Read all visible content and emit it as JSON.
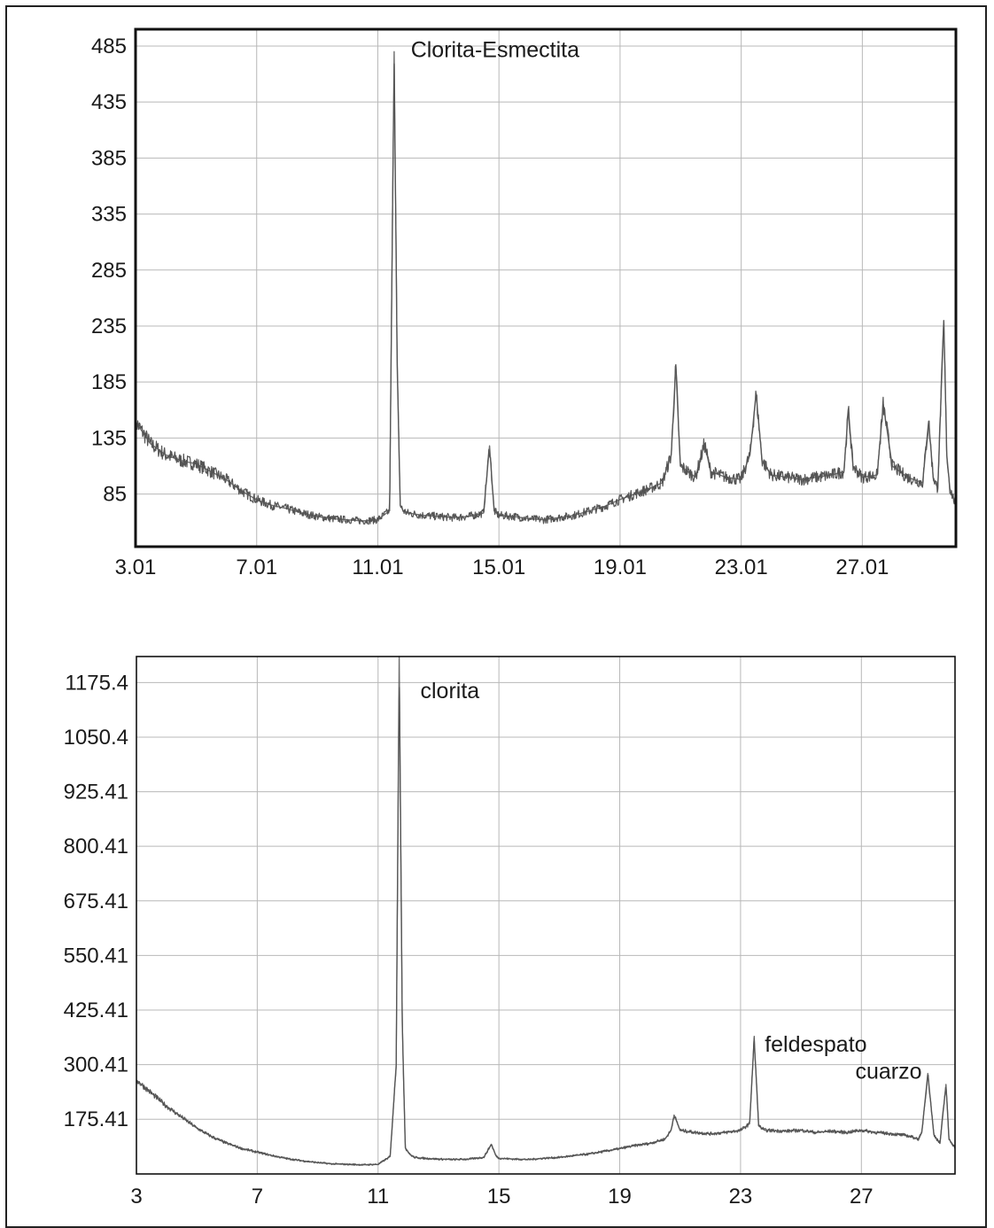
{
  "chart_data": [
    {
      "type": "line",
      "title": "",
      "xlabel": "",
      "ylabel": "",
      "x_ticks": [
        3.01,
        7.01,
        11.01,
        15.01,
        19.01,
        23.01,
        27.01
      ],
      "x_tick_labels": [
        "3.01",
        "7.01",
        "11.01",
        "15.01",
        "19.01",
        "23.01",
        "27.01"
      ],
      "y_ticks": [
        85,
        135,
        185,
        235,
        285,
        335,
        385,
        435,
        485
      ],
      "y_tick_labels": [
        "85",
        "135",
        "185",
        "235",
        "285",
        "335",
        "385",
        "435",
        "485"
      ],
      "xlim": [
        3.01,
        30.1
      ],
      "ylim": [
        38,
        500
      ],
      "grid": true,
      "annotations": [
        {
          "text": "Clorita-Esmectita",
          "x": 12.1,
          "y": 475
        }
      ],
      "series": [
        {
          "x": [
            3.0,
            3.5,
            4.0,
            4.5,
            5.0,
            5.5,
            6.0,
            6.5,
            7.0,
            7.5,
            8.0,
            8.5,
            9.0,
            9.5,
            10.0,
            10.5,
            11.0,
            11.4,
            11.55,
            11.65,
            11.75,
            11.85,
            12.0,
            12.5,
            13.0,
            13.5,
            14.0,
            14.5,
            14.7,
            14.85,
            15.0,
            15.5,
            16.0,
            16.5,
            17.0,
            17.5,
            18.0,
            18.5,
            19.0,
            19.5,
            20.0,
            20.4,
            20.7,
            20.85,
            21.0,
            21.5,
            21.8,
            22.0,
            22.5,
            23.0,
            23.3,
            23.5,
            23.7,
            24.0,
            24.5,
            25.0,
            25.5,
            26.0,
            26.4,
            26.55,
            26.7,
            27.0,
            27.5,
            27.7,
            28.0,
            28.5,
            29.0,
            29.2,
            29.35,
            29.5,
            29.7,
            29.8,
            29.9,
            30.1
          ],
          "y": [
            150,
            130,
            120,
            115,
            112,
            105,
            98,
            88,
            80,
            75,
            72,
            68,
            65,
            63,
            62,
            61,
            62,
            70,
            480,
            200,
            75,
            70,
            68,
            66,
            65,
            64,
            65,
            68,
            128,
            70,
            66,
            65,
            63,
            62,
            64,
            66,
            70,
            74,
            80,
            85,
            90,
            95,
            120,
            200,
            110,
            100,
            130,
            105,
            100,
            98,
            120,
            175,
            115,
            102,
            100,
            98,
            100,
            102,
            105,
            160,
            110,
            100,
            102,
            165,
            110,
            100,
            95,
            150,
            100,
            90,
            240,
            120,
            90,
            75
          ]
        }
      ]
    },
    {
      "type": "line",
      "title": "",
      "xlabel": "",
      "ylabel": "",
      "x_ticks": [
        3,
        7,
        11,
        15,
        19,
        23,
        27
      ],
      "x_tick_labels": [
        "3",
        "7",
        "11",
        "15",
        "19",
        "23",
        "27"
      ],
      "y_ticks": [
        175.41,
        300.41,
        425.41,
        550.41,
        675.41,
        800.41,
        925.41,
        1050.4,
        1175.4
      ],
      "y_tick_labels": [
        "175.41",
        "300.41",
        "425.41",
        "550.41",
        "675.41",
        "800.41",
        "925.41",
        "1050.4",
        "1175.4"
      ],
      "xlim": [
        3,
        30.1
      ],
      "ylim": [
        50,
        1235
      ],
      "grid": true,
      "annotations": [
        {
          "text": "clorita",
          "x": 12.4,
          "y": 1140
        },
        {
          "text": "feldespato",
          "x": 23.8,
          "y": 330
        },
        {
          "text": "cuarzo",
          "x": 26.8,
          "y": 268
        }
      ],
      "series": [
        {
          "x": [
            3.0,
            3.5,
            4.0,
            4.5,
            5.0,
            5.5,
            6.0,
            6.5,
            7.0,
            7.5,
            8.0,
            8.5,
            9.0,
            9.5,
            10.0,
            10.5,
            11.0,
            11.4,
            11.6,
            11.7,
            11.8,
            11.9,
            12.05,
            12.2,
            12.5,
            13.0,
            13.5,
            14.0,
            14.5,
            14.75,
            14.9,
            15.0,
            15.5,
            16.0,
            16.5,
            17.0,
            17.5,
            18.0,
            18.5,
            19.0,
            19.5,
            20.0,
            20.5,
            20.7,
            20.8,
            21.0,
            21.5,
            22.0,
            22.5,
            23.0,
            23.3,
            23.45,
            23.6,
            23.8,
            24.5,
            25.0,
            25.5,
            26.0,
            26.5,
            27.0,
            27.5,
            28.0,
            28.5,
            28.9,
            29.0,
            29.2,
            29.4,
            29.6,
            29.8,
            29.9,
            30.1
          ],
          "y": [
            265,
            235,
            205,
            180,
            155,
            135,
            120,
            108,
            100,
            92,
            85,
            80,
            76,
            73,
            72,
            71,
            72,
            90,
            300,
            1235,
            400,
            110,
            95,
            88,
            86,
            84,
            83,
            84,
            88,
            118,
            92,
            86,
            84,
            83,
            86,
            88,
            92,
            96,
            102,
            108,
            115,
            120,
            130,
            150,
            185,
            150,
            145,
            142,
            145,
            150,
            165,
            360,
            160,
            150,
            148,
            150,
            145,
            148,
            145,
            150,
            145,
            142,
            138,
            130,
            145,
            280,
            140,
            120,
            255,
            130,
            110
          ]
        }
      ]
    }
  ]
}
